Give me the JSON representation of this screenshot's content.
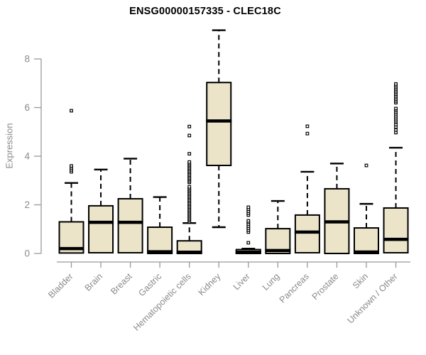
{
  "title": "ENSG00000157335 - CLEC18C",
  "colors": {
    "background": "#FFFFFF",
    "box_fill": "#EBE4C8",
    "box_border": "#000000",
    "median": "#000000",
    "whisker": "#000000",
    "outlier_stroke": "#000000",
    "outlier_fill": "#FFFFFF",
    "axis_line": "#999999",
    "tick_text": "#8A8A8A",
    "title_text": "#000000"
  },
  "chart_data": {
    "type": "boxplot",
    "title": "ENSG00000157335 - CLEC18C",
    "xlabel": "",
    "ylabel": "Expression",
    "ylim": [
      0,
      9.2
    ],
    "y_ticks": [
      0,
      2,
      4,
      6,
      8
    ],
    "grid": false,
    "legend": false,
    "categories": [
      "Bladder",
      "Brain",
      "Breast",
      "Gastric",
      "Hematopoietic cells",
      "Kidney",
      "Liver",
      "Lung",
      "Pancreas",
      "Prostate",
      "Skin",
      "Unknown / Other"
    ],
    "series": [
      {
        "name": "Bladder",
        "whisker_low": 0,
        "q1": 0.02,
        "median": 0.2,
        "q3": 1.3,
        "whisker_high": 2.9,
        "outliers": [
          3.36,
          3.44,
          3.52,
          3.6,
          5.87
        ]
      },
      {
        "name": "Brain",
        "whisker_low": 0,
        "q1": 0.03,
        "median": 1.28,
        "q3": 1.96,
        "whisker_high": 3.45,
        "outliers": []
      },
      {
        "name": "Breast",
        "whisker_low": 0,
        "q1": 0.03,
        "median": 1.28,
        "q3": 2.25,
        "whisker_high": 3.9,
        "outliers": []
      },
      {
        "name": "Gastric",
        "whisker_low": 0,
        "q1": 0.0,
        "median": 0.07,
        "q3": 1.08,
        "whisker_high": 2.32,
        "outliers": []
      },
      {
        "name": "Hematopoietic cells",
        "whisker_low": 0,
        "q1": 0.0,
        "median": 0.05,
        "q3": 0.52,
        "whisker_high": 1.25,
        "outliers": [
          1.3,
          1.36,
          1.42,
          1.48,
          1.54,
          1.6,
          1.66,
          1.72,
          1.78,
          1.84,
          1.9,
          1.96,
          2.02,
          2.08,
          2.14,
          2.2,
          2.26,
          2.32,
          2.38,
          2.44,
          2.5,
          2.56,
          2.62,
          2.68,
          2.74,
          2.92,
          2.98,
          3.04,
          3.1,
          3.16,
          3.22,
          3.28,
          3.34,
          3.4,
          3.46,
          3.52,
          3.58,
          3.64,
          3.7,
          3.76,
          4.1,
          4.85,
          5.22
        ]
      },
      {
        "name": "Kidney",
        "whisker_low": 1.08,
        "q1": 3.62,
        "median": 5.45,
        "q3": 7.03,
        "whisker_high": 9.18,
        "outliers": []
      },
      {
        "name": "Liver",
        "whisker_low": 0,
        "q1": 0.0,
        "median": 0.05,
        "q3": 0.16,
        "whisker_high": 0.2,
        "outliers": [
          0.44,
          0.88,
          0.96,
          1.04,
          1.12,
          1.2,
          1.28,
          1.34,
          1.58,
          1.66,
          1.74,
          1.82,
          1.9
        ]
      },
      {
        "name": "Lung",
        "whisker_low": 0,
        "q1": 0.0,
        "median": 0.12,
        "q3": 1.02,
        "whisker_high": 2.16,
        "outliers": []
      },
      {
        "name": "Pancreas",
        "whisker_low": 0,
        "q1": 0.03,
        "median": 0.88,
        "q3": 1.58,
        "whisker_high": 3.36,
        "outliers": [
          4.93,
          5.23
        ]
      },
      {
        "name": "Prostate",
        "whisker_low": 0,
        "q1": 0.0,
        "median": 1.3,
        "q3": 2.66,
        "whisker_high": 3.7,
        "outliers": []
      },
      {
        "name": "Skin",
        "whisker_low": 0,
        "q1": 0.0,
        "median": 0.06,
        "q3": 1.05,
        "whisker_high": 2.04,
        "outliers": [
          3.62
        ]
      },
      {
        "name": "Unknown / Other",
        "whisker_low": 0,
        "q1": 0.03,
        "median": 0.58,
        "q3": 1.87,
        "whisker_high": 4.35,
        "outliers": [
          4.97,
          5.08,
          5.2,
          5.3,
          5.42,
          5.5,
          5.58,
          5.66,
          5.74,
          5.82,
          5.9,
          5.96,
          6.2,
          6.27,
          6.34,
          6.41,
          6.48,
          6.55,
          6.62,
          6.69,
          6.76,
          6.83,
          6.9,
          6.97
        ]
      }
    ]
  }
}
